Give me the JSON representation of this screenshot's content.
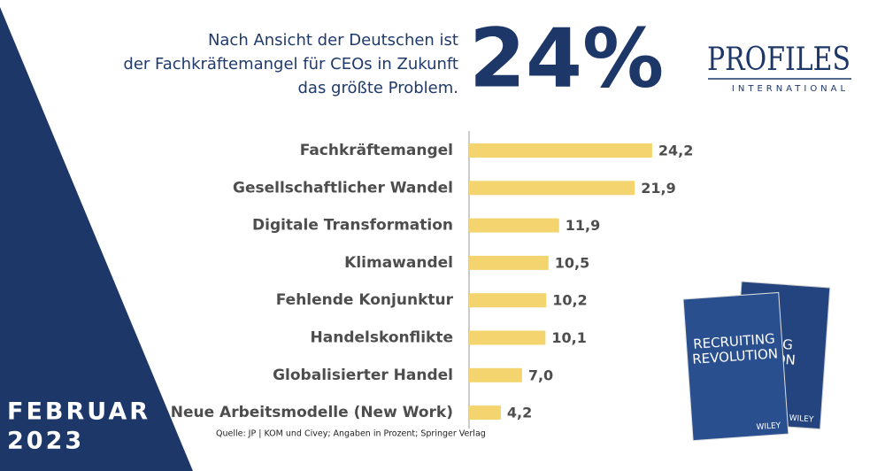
{
  "header": {
    "lines": [
      "Nach Ansicht der Deutschen ist",
      "der Fachkräftemangel für CEOs in Zukunft",
      "das größte Problem."
    ],
    "highlight": "24%"
  },
  "logo": {
    "name": "PROFILES",
    "subtitle": "INTERNATIONAL"
  },
  "date": {
    "month": "FEBRUAR",
    "year": "2023"
  },
  "book": {
    "title_lines": [
      "RECRUITING",
      "REVOLUTION"
    ],
    "publisher": "WILEY"
  },
  "chart_data": {
    "type": "bar",
    "orientation": "horizontal",
    "categories": [
      "Fachkräftemangel",
      "Gesellschaftlicher Wandel",
      "Digitale Transformation",
      "Klimawandel",
      "Fehlende Konjunktur",
      "Handelskonflikte",
      "Globalisierter Handel",
      "Neue Arbeitsmodelle (New Work)"
    ],
    "values": [
      24.2,
      21.9,
      11.9,
      10.5,
      10.2,
      10.1,
      7.0,
      4.2
    ],
    "value_labels": [
      "24,2",
      "21,9",
      "11,9",
      "10,5",
      "10,2",
      "10,1",
      "7,0",
      "4,2"
    ],
    "color": "#f4d46e",
    "source": "Quelle: JP | KOM und Civey; Angaben in Prozent; Springer Verlag"
  }
}
